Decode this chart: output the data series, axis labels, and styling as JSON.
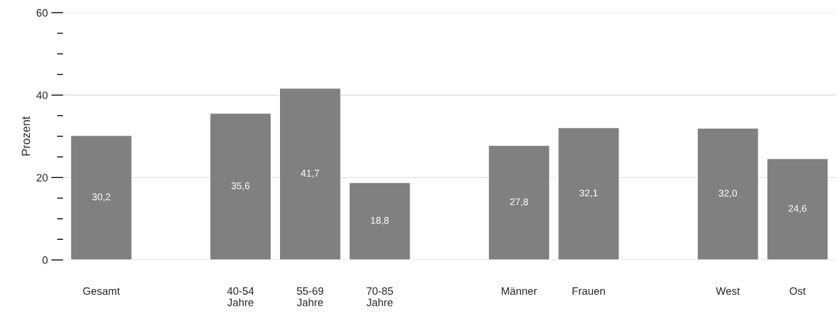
{
  "chart_data": {
    "type": "bar",
    "ylabel": "Prozent",
    "categories": [
      "Gesamt",
      null,
      "40-54\nJahre",
      "55-69\nJahre",
      "70-85\nJahre",
      null,
      "Männer",
      "Frauen",
      null,
      "West",
      "Ost"
    ],
    "values": [
      30.2,
      null,
      35.6,
      41.7,
      18.8,
      null,
      27.8,
      32.1,
      null,
      32.0,
      24.6
    ],
    "value_labels": [
      "30,2",
      null,
      "35,6",
      "41,7",
      "18,8",
      null,
      "27,8",
      "32,1",
      null,
      "32,0",
      "24,6"
    ],
    "color": "#808080",
    "ylim": [
      0,
      60
    ],
    "yticks": [
      0,
      {
        "value": 5,
        "label": null
      },
      {
        "value": 10,
        "label": null
      },
      {
        "value": 15,
        "label": null
      },
      20,
      {
        "value": 25,
        "label": null
      },
      {
        "value": 30,
        "label": null
      },
      {
        "value": 35,
        "label": null
      },
      40,
      {
        "value": 45,
        "label": null
      },
      {
        "value": 50,
        "label": null
      },
      {
        "value": 55,
        "label": null
      },
      60
    ],
    "grid": "y"
  }
}
